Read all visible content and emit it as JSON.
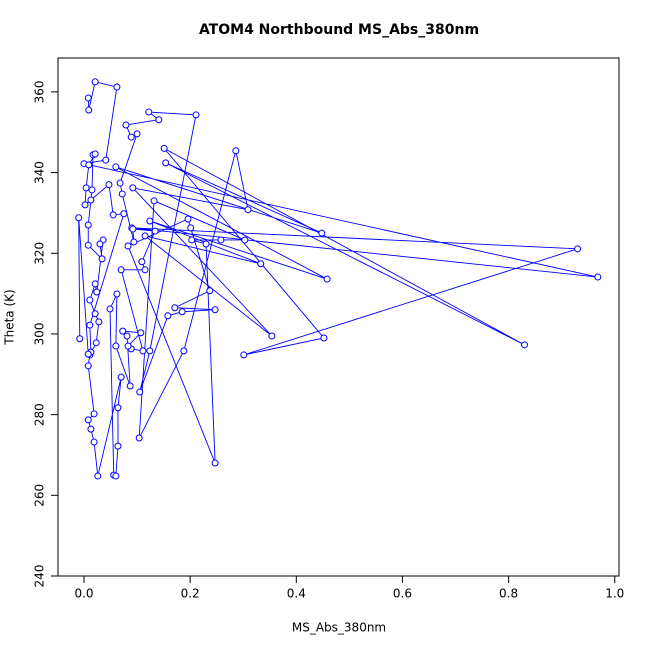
{
  "chart_data": {
    "type": "line",
    "markers": true,
    "title": "ATOM4 Northbound MS_Abs_380nm",
    "x_label": "MS_Abs_380nm",
    "y_label": "Theta (K)",
    "xlim": [
      -0.049,
      1.008
    ],
    "ylim": [
      240,
      368.4
    ],
    "xticks": [
      {
        "value": 0,
        "label": "0.0"
      },
      0.2,
      0.4,
      0.6,
      0.8,
      {
        "value": 1,
        "label": "1.0"
      }
    ],
    "yticks": [
      240,
      260,
      280,
      300,
      320,
      340,
      360
    ],
    "series": [
      {
        "color": "#0000ff",
        "x": [
          0.008,
          0.009,
          0.021,
          0.062,
          0.041,
          0.0,
          0.968,
          0.09,
          0.93,
          0.301,
          0.452,
          0.151,
          0.83,
          0.154,
          0.448,
          0.06,
          0.458,
          0.124,
          0.333,
          0.115,
          0.354,
          0.092,
          0.309,
          0.286,
          0.188,
          0.104,
          0.132,
          0.303,
          0.258,
          0.203,
          0.23,
          0.247,
          0.083,
          0.196,
          0.201,
          0.237,
          0.171,
          0.247,
          0.185,
          0.158,
          0.105,
          0.124,
          0.211,
          0.122,
          0.141,
          0.079,
          0.089,
          0.1,
          0.068,
          0.072,
          0.094,
          0.092,
          0.134,
          0.109,
          0.115,
          0.07,
          0.111,
          0.089,
          0.083,
          0.107,
          0.073,
          0.081,
          0.087,
          0.06,
          0.062,
          0.049,
          0.056,
          0.06,
          0.064,
          0.064,
          0.07,
          0.026,
          0.019,
          0.013,
          0.008,
          0.019,
          0.008,
          0.011,
          0.023,
          0.028,
          0.021,
          0.011,
          0.021,
          0.024,
          0.036,
          0.03,
          0.034,
          0.008,
          0.008,
          0.013,
          0.015,
          0.017,
          0.021,
          0.009,
          0.004,
          0.002,
          0.047,
          0.055,
          0.075,
          0.011,
          0.013,
          0.008,
          -0.01,
          -0.008
        ],
        "values": [
          358.5,
          355.5,
          362.5,
          361.2,
          343.1,
          342.2,
          314.1,
          326.3,
          321.1,
          294.8,
          299,
          346,
          297.3,
          342.4,
          325,
          341.4,
          313.6,
          328,
          317.4,
          324.3,
          299.5,
          336.2,
          330.8,
          345.4,
          295.8,
          274.2,
          333,
          323.3,
          323.3,
          323.3,
          322.3,
          268,
          321.8,
          328.5,
          326.3,
          310.7,
          306.5,
          306,
          305.5,
          304.5,
          285.6,
          295.8,
          354.3,
          355,
          353.1,
          351.8,
          348.8,
          349.6,
          337.4,
          334.7,
          322.8,
          326,
          325.5,
          317.9,
          315.9,
          315.9,
          295.8,
          296.3,
          297,
          300.3,
          300.7,
          299.5,
          287.1,
          297,
          309.9,
          306.2,
          265,
          264.8,
          272.2,
          281.7,
          289.3,
          264.8,
          273.2,
          276.4,
          278.7,
          280.2,
          292.1,
          294.8,
          297.8,
          303,
          305,
          308.4,
          312.4,
          310.4,
          323.3,
          322.3,
          318.6,
          322,
          327,
          333.2,
          335.7,
          344.4,
          344.6,
          341.9,
          336.2,
          332,
          337,
          329.5,
          329.8,
          302.2,
          295.5,
          295,
          328.8,
          298.8
        ]
      }
    ]
  }
}
